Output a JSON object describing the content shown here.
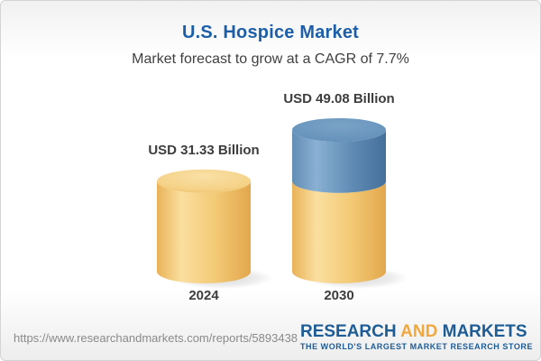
{
  "header": {
    "title": "U.S. Hospice Market",
    "subtitle": "Market forecast to grow at a CAGR of 7.7%"
  },
  "chart_data": {
    "type": "bar",
    "variant": "3d-cylinder",
    "title": "U.S. Hospice Market",
    "subtitle": "Market forecast to grow at a CAGR of 7.7%",
    "cagr_percent": 7.7,
    "unit": "USD Billion",
    "categories": [
      "2024",
      "2030"
    ],
    "values": [
      31.33,
      49.08
    ],
    "value_labels": [
      "USD 31.33 Billion",
      "USD 49.08 Billion"
    ],
    "legend": "none",
    "axes": "none",
    "colors": {
      "base_segment_yellow": "#f0c46e",
      "growth_segment_blue": "#5d89b4"
    },
    "notes": "2030 cylinder is split: yellow base portion equals the 2024 value (31.33), blue top segment is the growth to 49.08"
  },
  "footer": {
    "url": "https://www.researchandmarkets.com/reports/5893438",
    "logo": {
      "part1": "RESEARCH",
      "part2": "AND",
      "part3": "MARKETS",
      "tagline": "THE WORLD'S LARGEST MARKET RESEARCH STORE",
      "blue": "#1e5c96",
      "orange": "#f0a73d"
    }
  },
  "style_colors": {
    "title_blue": "#1c5fa8",
    "text_dark": "#3d3d3d",
    "url_gray": "#8a8a8a",
    "card_border": "#d4d4d4"
  }
}
